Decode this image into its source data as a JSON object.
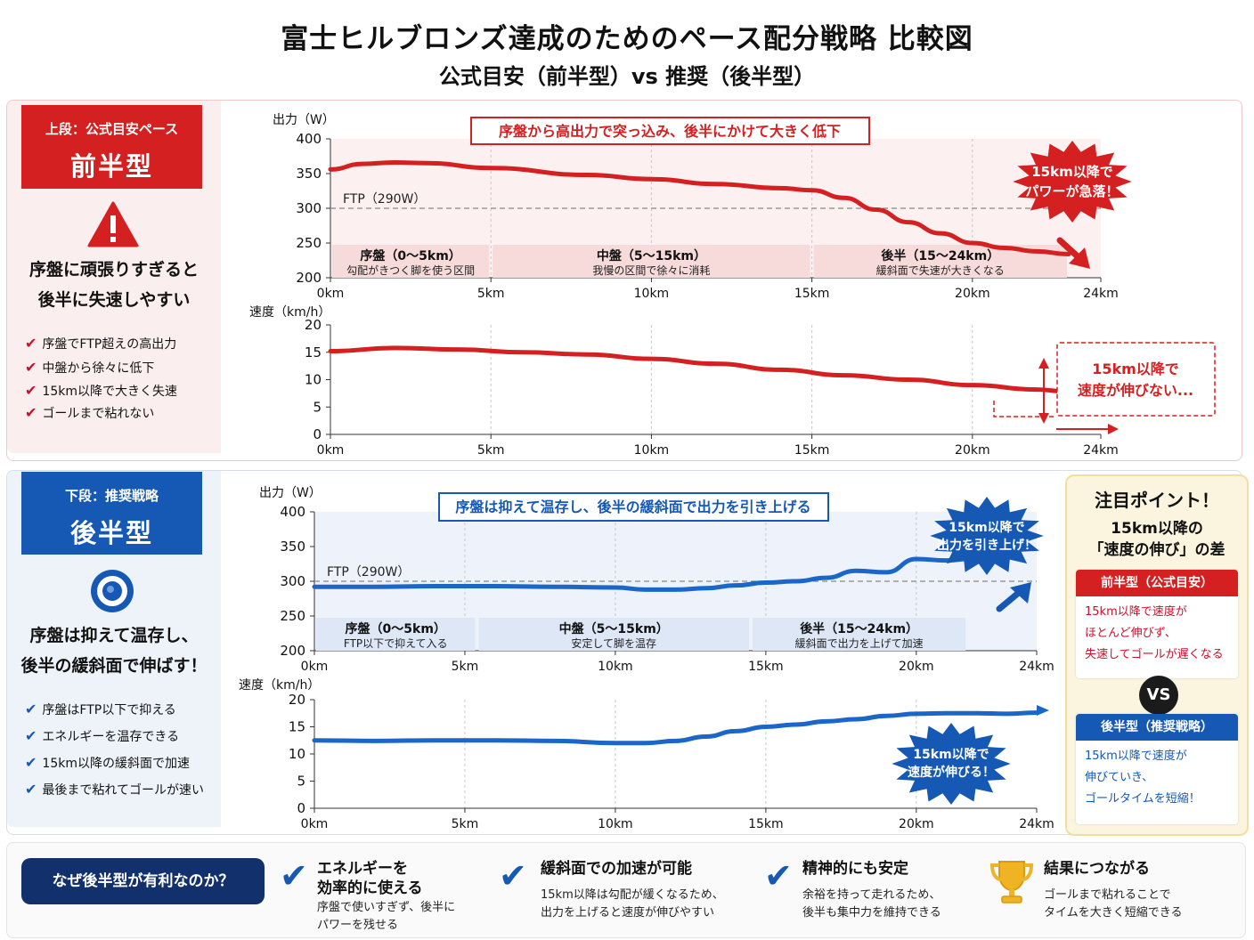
{
  "header": {
    "title": "富士ヒルブロンズ達成のためのペース配分戦略 比較図",
    "subtitle": "公式目安（前半型）vs 推奨（後半型）"
  },
  "top_side": {
    "tag_small": "上段：公式目安ペース",
    "tag_big": "前半型",
    "icon": "warning-icon",
    "lead_line1": "序盤に頑張りすぎると",
    "lead_line2": "後半に失速しやすい",
    "checks": [
      "序盤でFTP超えの高出力",
      "中盤から徐々に低下",
      "15km以降で大きく失速",
      "ゴールまで粘れない"
    ]
  },
  "bottom_side": {
    "tag_small": "下段：推奨戦略",
    "tag_big": "後半型",
    "icon": "target-icon",
    "lead_line1": "序盤は抑えて温存し、",
    "lead_line2": "後半の緩斜面で伸ばす！",
    "checks": [
      "序盤はFTP以下で抑える",
      "エネルギーを温存できる",
      "15km以降の緩斜面で加速",
      "最後まで粘れてゴールが速い"
    ]
  },
  "top_power": {
    "ylabel": "出力（W）",
    "callout": "序盤から高出力で突っ込み、後半にかけて大きく低下",
    "ftp_label": "FTP（290W）",
    "burst": [
      "15km以降で",
      "パワーが急落！"
    ],
    "segments": [
      {
        "title": "序盤（0〜5km）",
        "desc": "勾配がきつく脚を使う区間"
      },
      {
        "title": "中盤（5〜15km）",
        "desc": "我慢の区間で徐々に消耗"
      },
      {
        "title": "後半（15〜24km）",
        "desc": "緩斜面で失速が大きくなる"
      }
    ]
  },
  "top_speed": {
    "ylabel": "速度（km/h）",
    "note": [
      "15km以降で",
      "速度が伸びない..."
    ]
  },
  "bottom_power": {
    "ylabel": "出力（W）",
    "callout": "序盤は抑えて温存し、後半の緩斜面で出力を引き上げる",
    "ftp_label": "FTP（290W）",
    "burst": [
      "15km以降で",
      "出力を引き上げ！"
    ],
    "segments": [
      {
        "title": "序盤（0〜5km）",
        "desc": "FTP以下で抑えて入る"
      },
      {
        "title": "中盤（5〜15km）",
        "desc": "安定して脚を温存"
      },
      {
        "title": "後半（15〜24km）",
        "desc": "緩斜面で出力を上げて加速"
      }
    ]
  },
  "bottom_speed": {
    "ylabel": "速度（km/h）",
    "burst": [
      "15km以降で",
      "速度が伸びる！"
    ]
  },
  "point": {
    "title": "注目ポイント！",
    "sub1": "15km以降の",
    "sub2": "「速度の伸び」の差",
    "front_head": "前半型（公式目安）",
    "front_body": [
      "15km以降で速度が",
      "ほとんど伸びず、",
      "失速してゴールが遅くなる"
    ],
    "vs": "VS",
    "back_head": "後半型（推奨戦略）",
    "back_body": [
      "15km以降で速度が",
      "伸びていき、",
      "ゴールタイムを短縮！"
    ]
  },
  "bottom_bar": {
    "why": "なぜ後半型が有利なのか？",
    "features": [
      {
        "title1": "エネルギーを",
        "title2": "効率的に使える",
        "text1": "序盤で使いすぎず、後半に",
        "text2": "パワーを残せる",
        "icon": "check-icon"
      },
      {
        "title1": "緩斜面での加速が可能",
        "title2": "",
        "text1": "15km以降は勾配が緩くなるため、",
        "text2": "出力を上げると速度が伸びやすい",
        "icon": "check-icon"
      },
      {
        "title1": "精神的にも安定",
        "title2": "",
        "text1": "余裕を持って走れるため、",
        "text2": "後半も集中力を維持できる",
        "icon": "check-icon"
      },
      {
        "title1": "結果につながる",
        "title2": "",
        "text1": "ゴールまで粘れることで",
        "text2": "タイムを大きく短縮できる",
        "icon": "trophy-icon"
      }
    ]
  },
  "colors": {
    "red": "#d42020",
    "blue": "#1559b5",
    "navy": "#12306b"
  },
  "chart_data": [
    {
      "type": "line",
      "name": "top_power",
      "x_ticks": [
        "0km",
        "5km",
        "10km",
        "15km",
        "20km",
        "24km"
      ],
      "y_ticks": [
        "400",
        "350",
        "300",
        "250",
        "200"
      ],
      "ylim": [
        200,
        400
      ],
      "xlim": [
        0,
        24
      ],
      "ftp": 290,
      "series": [
        {
          "x": [
            0,
            1,
            2,
            3,
            5,
            8,
            10,
            12,
            14,
            15,
            16,
            17,
            18,
            19,
            20,
            21,
            22,
            23
          ],
          "values": [
            356,
            364,
            366,
            365,
            358,
            348,
            342,
            335,
            329,
            326,
            315,
            298,
            280,
            264,
            250,
            243,
            238,
            234
          ]
        }
      ]
    },
    {
      "type": "line",
      "name": "top_speed",
      "x_ticks": [
        "0km",
        "5km",
        "10km",
        "15km",
        "20km",
        "24km"
      ],
      "y_ticks": [
        "20",
        "15",
        "10",
        "5",
        "0"
      ],
      "ylim": [
        0,
        20
      ],
      "xlim": [
        0,
        24
      ],
      "series": [
        {
          "x": [
            0,
            2,
            4,
            6,
            8,
            10,
            12,
            14,
            16,
            18,
            20,
            22,
            23
          ],
          "values": [
            15.2,
            15.8,
            15.5,
            15.0,
            14.6,
            13.8,
            12.9,
            11.8,
            10.8,
            10.0,
            9.0,
            8.2,
            7.8
          ]
        }
      ]
    },
    {
      "type": "line",
      "name": "bottom_power",
      "x_ticks": [
        "0km",
        "5km",
        "10km",
        "15km",
        "20km",
        "24km"
      ],
      "y_ticks": [
        "400",
        "350",
        "300",
        "250",
        "200"
      ],
      "ylim": [
        200,
        400
      ],
      "xlim": [
        0,
        24
      ],
      "ftp": 290,
      "series": [
        {
          "x": [
            0,
            2,
            4,
            6,
            8,
            10,
            11,
            12,
            13,
            14,
            15,
            16,
            17,
            18,
            19,
            20,
            21,
            22,
            23
          ],
          "values": [
            292,
            292,
            293,
            293,
            292,
            291,
            288,
            288,
            290,
            294,
            298,
            300,
            305,
            315,
            313,
            332,
            330,
            333,
            335
          ]
        }
      ]
    },
    {
      "type": "line",
      "name": "bottom_speed",
      "x_ticks": [
        "0km",
        "5km",
        "10km",
        "15km",
        "20km",
        "24km"
      ],
      "y_ticks": [
        "20",
        "15",
        "10",
        "5",
        "0"
      ],
      "ylim": [
        0,
        20
      ],
      "xlim": [
        0,
        24
      ],
      "series": [
        {
          "x": [
            0,
            2,
            4,
            6,
            8,
            10,
            11,
            12,
            13,
            14,
            15,
            16,
            17,
            18,
            19,
            20,
            21,
            22,
            23,
            24
          ],
          "values": [
            12.5,
            12.4,
            12.5,
            12.5,
            12.4,
            12.0,
            12.0,
            12.4,
            13.2,
            14.2,
            15.0,
            15.4,
            16.0,
            16.4,
            17.0,
            17.4,
            17.5,
            17.5,
            17.4,
            17.6
          ]
        }
      ]
    }
  ]
}
